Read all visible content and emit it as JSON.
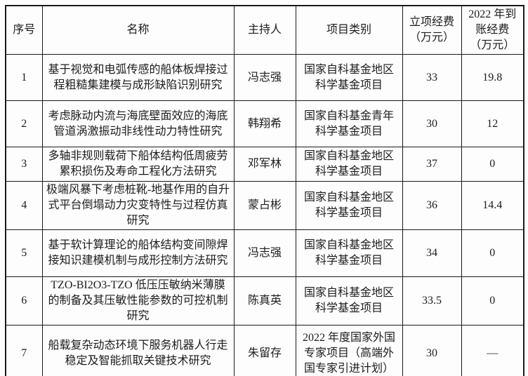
{
  "table": {
    "columns": [
      {
        "label": "序号"
      },
      {
        "label": "名称"
      },
      {
        "label": "主持人"
      },
      {
        "label": "项目类别"
      },
      {
        "label": "立项经费（万元）"
      },
      {
        "label": "2022 年到账经费（万元）"
      }
    ],
    "rows": [
      {
        "no": "1",
        "name": "基于视觉和电弧传感的船体板焊接过程粗糙集建模与成形缺陷识别研究",
        "leader": "冯志强",
        "category": "国家自科基金地区科学基金项目",
        "approved_funding": "33",
        "received_2022": "19.8",
        "name_bold": false
      },
      {
        "no": "2",
        "name": "考虑脉动内流与海底壁面效应的海底管道涡激振动非线性动力特性研究",
        "leader": "韩翔希",
        "category": "国家自科基金青年科学基金项目",
        "approved_funding": "30",
        "received_2022": "12",
        "name_bold": false
      },
      {
        "no": "3",
        "name": "多轴非规则载荷下船体结构低周疲劳累积损伤及寿命工程化方法研究",
        "leader": "邓军林",
        "category": "国家自科基金地区科学基金项目",
        "approved_funding": "37",
        "received_2022": "0",
        "name_bold": false
      },
      {
        "no": "4",
        "name": "极端风暴下考虑桩靴-地基作用的自升式平台倒塌动力灾变特性与过程仿真研究",
        "leader": "蒙占彬",
        "category": "国家自科基金地区科学基金项目",
        "approved_funding": "36",
        "received_2022": "14.4",
        "name_bold": false
      },
      {
        "no": "5",
        "name": "基于软计算理论的船体结构变间隙焊接知识建模机制与成形控制方法研究",
        "leader": "冯志强",
        "category": "国家自科基金地区科学基金项目",
        "approved_funding": "34",
        "received_2022": "0",
        "name_bold": false
      },
      {
        "no": "6",
        "name": "TZO-BI2O3-TZO 低压压敏纳米薄膜的制备及其压敏性能参数的可控机制研究",
        "leader": "陈真英",
        "category": "国家自科基金地区科学基金项目",
        "approved_funding": "33.5",
        "received_2022": "0",
        "name_bold": true
      },
      {
        "no": "7",
        "name": "船载复杂动态环境下服务机器人行走稳定及智能抓取关键技术研究",
        "leader": "朱留存",
        "category": "2022 年度国家外国专家项目（高端外国专家引进计划）",
        "approved_funding": "30",
        "received_2022": "—",
        "name_bold": false
      }
    ]
  }
}
